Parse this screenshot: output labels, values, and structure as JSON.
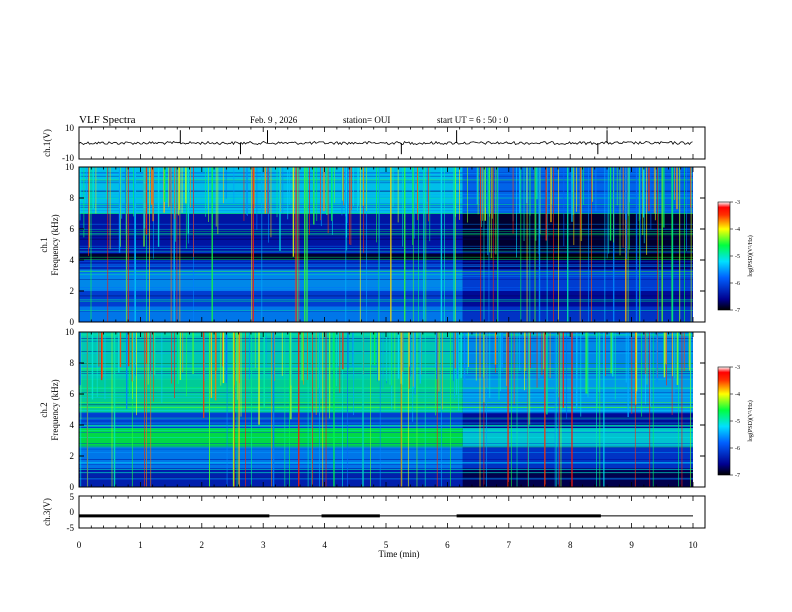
{
  "chart_data": {
    "type": "heatmap",
    "title": "VLF Spectra",
    "header": {
      "date": "Feb. 9 , 2026",
      "station": "station= OUI",
      "start": "start UT = 6 : 50 : 0"
    },
    "xlabel": "Time (min)",
    "xlim": [
      0,
      10
    ],
    "x_ticks": [
      "0",
      "1",
      "2",
      "3",
      "4",
      "5",
      "6",
      "7",
      "8",
      "9",
      "10"
    ],
    "panels": [
      {
        "name": "ch1-waveform",
        "ylabel": "ch.1(V)",
        "ylim": [
          -10,
          10
        ],
        "y_ticks": [
          "10",
          "-10"
        ],
        "baseline": 0,
        "spikes_min": [
          1.65,
          2.63,
          3.07,
          5.25,
          6.15,
          8.45,
          8.6
        ]
      },
      {
        "name": "ch1-spectrogram",
        "ylabel": "ch.1 Frequency (kHz)",
        "ylim": [
          0,
          10
        ],
        "y_ticks": [
          "0",
          "2",
          "4",
          "6",
          "8",
          "10"
        ],
        "colorbar": {
          "label": "log(PSD)(V²/Hz)",
          "range": [
            -7,
            -3
          ],
          "ticks": [
            "-3",
            "-4",
            "-5",
            "-6",
            "-7"
          ]
        },
        "change_time_min": 6.25,
        "bands_khz": [
          {
            "from": 0,
            "to": 1.0,
            "log_psd": -5.6
          },
          {
            "from": 1.0,
            "to": 2.0,
            "log_psd": -6.0
          },
          {
            "from": 2.0,
            "to": 3.4,
            "log_psd": -5.5
          },
          {
            "from": 3.4,
            "to": 4.0,
            "log_psd": -6.2
          },
          {
            "from": 4.0,
            "to": 4.4,
            "log_psd": -6.9
          },
          {
            "from": 4.4,
            "to": 7.0,
            "log_psd": -6.4
          },
          {
            "from": 7.0,
            "to": 10.0,
            "log_psd": -5.2
          }
        ]
      },
      {
        "name": "ch2-spectrogram",
        "ylabel": "ch.2 Frequency (kHz)",
        "ylim": [
          0,
          10
        ],
        "y_ticks": [
          "0",
          "2",
          "4",
          "6",
          "8",
          "10"
        ],
        "colorbar": {
          "label": "log(PSD)(V²/Hz)",
          "range": [
            -7,
            -3
          ],
          "ticks": [
            "-3",
            "-4",
            "-5",
            "-6",
            "-7"
          ]
        },
        "change_time_min": 6.25,
        "bands_khz": [
          {
            "from": 0,
            "to": 1.2,
            "log_psd": -6.3
          },
          {
            "from": 1.2,
            "to": 2.6,
            "log_psd": -5.6
          },
          {
            "from": 2.6,
            "to": 3.8,
            "log_psd": -4.6
          },
          {
            "from": 3.8,
            "to": 4.8,
            "log_psd": -6.0
          },
          {
            "from": 4.8,
            "to": 7.0,
            "log_psd": -4.9
          },
          {
            "from": 7.0,
            "to": 10.0,
            "log_psd": -5.0
          }
        ]
      },
      {
        "name": "ch3-waveform",
        "ylabel": "ch.3(V)",
        "ylim": [
          -5,
          5
        ],
        "y_ticks": [
          "5",
          "0",
          "-5"
        ],
        "level": -1.2,
        "thick_segments_min": [
          [
            0,
            3.1
          ],
          [
            3.95,
            4.9
          ],
          [
            6.15,
            8.5
          ]
        ]
      }
    ]
  }
}
